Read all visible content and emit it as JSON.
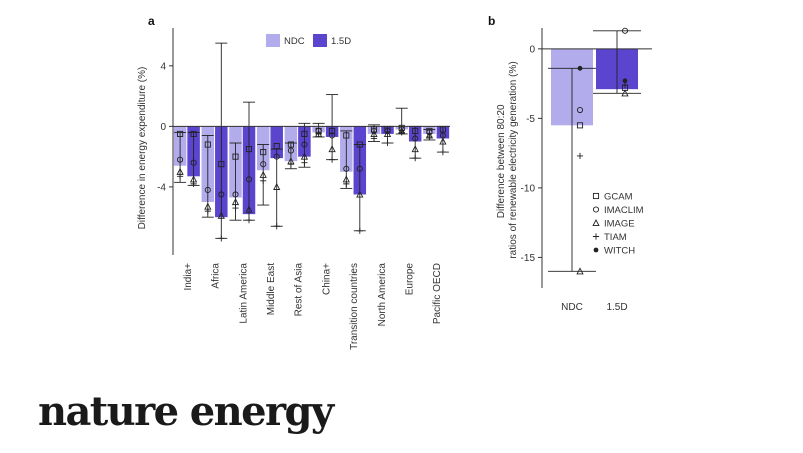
{
  "logo_text": "nature energy",
  "colors": {
    "ndc": "#b3acec",
    "d15": "#5b45cf",
    "axis": "#333333",
    "marker": "#222222"
  },
  "chart_data": [
    {
      "type": "bar",
      "panel_label": "a",
      "ylabel": "Difference in energy expenditure (%)",
      "ylim": [
        -8.5,
        6.5
      ],
      "yticks": [
        4,
        0,
        -4
      ],
      "categories": [
        "India+",
        "Africa",
        "Latin America",
        "Middle East",
        "Rest of Asia",
        "China+",
        "Transition countries",
        "North America",
        "Europe",
        "Pacific OECD"
      ],
      "legend": {
        "position": "top-right",
        "entries": [
          "NDC",
          "1.5D"
        ]
      },
      "series": [
        {
          "name": "NDC",
          "values": [
            -2.6,
            -5.0,
            -4.7,
            -2.9,
            -2.3,
            -0.4,
            -3.0,
            -0.5,
            -0.2,
            -0.5
          ],
          "err_low": [
            -3.7,
            -6.0,
            -6.2,
            -5.2,
            -2.8,
            -0.7,
            -4.1,
            -1.0,
            -0.5,
            -0.9
          ],
          "err_high": [
            -0.4,
            -0.6,
            -1.1,
            -1.2,
            -1.1,
            0.2,
            -0.3,
            0.1,
            1.2,
            -0.2
          ],
          "markers": [
            [
              -0.5,
              -2.2,
              -3.0,
              -3.3
            ],
            [
              -1.2,
              -4.2,
              -5.3,
              -5.6
            ],
            [
              -2.0,
              -4.5,
              -5.0,
              -5.4
            ],
            [
              -1.7,
              -2.5,
              -3.2,
              -3.6
            ],
            [
              -1.2,
              -1.6,
              -2.3,
              -2.5
            ],
            [
              -0.3,
              -0.3,
              -0.5,
              -0.5
            ],
            [
              -0.6,
              -2.8,
              -3.5,
              -3.8
            ],
            [
              -0.2,
              -0.3,
              -0.5,
              -0.8
            ],
            [
              -0.1,
              -0.2,
              -0.3,
              -0.4
            ],
            [
              -0.3,
              -0.4,
              -0.6,
              -0.7
            ]
          ]
        },
        {
          "name": "1.5D",
          "values": [
            -3.3,
            -6.0,
            -5.8,
            -2.1,
            -2.0,
            -0.7,
            -4.5,
            -0.5,
            -1.0,
            -0.8
          ],
          "err_low": [
            -3.9,
            -7.4,
            -6.2,
            -6.6,
            -2.7,
            -2.2,
            -6.9,
            -1.1,
            -2.1,
            -1.7
          ],
          "err_high": [
            -0.4,
            5.5,
            1.6,
            -1.5,
            0.2,
            2.1,
            -1.2,
            0.0,
            0.0,
            0.0
          ],
          "markers": [
            [
              -0.5,
              -2.4,
              -3.5,
              -3.8
            ],
            [
              -2.5,
              -4.5,
              -5.9,
              -7.4
            ],
            [
              -1.5,
              -3.5,
              -5.5,
              -6.2
            ],
            [
              -1.3,
              -2.0,
              -4.0,
              -6.6
            ],
            [
              -0.5,
              -1.2,
              -2.0,
              -2.4
            ],
            [
              -0.3,
              -0.6,
              -1.5,
              -2.2
            ],
            [
              -1.2,
              -2.8,
              -4.5,
              -6.9
            ],
            [
              -0.2,
              -0.3,
              -0.5,
              -1.1
            ],
            [
              -0.3,
              -0.8,
              -1.5,
              -2.1
            ],
            [
              -0.2,
              -0.6,
              -1.0,
              -1.7
            ]
          ]
        }
      ]
    },
    {
      "type": "bar",
      "panel_label": "b",
      "ylabel": "Difference between 80:20 ratios of renewable electricity generation (%)",
      "ylim": [
        -17.2,
        1.5
      ],
      "yticks": [
        0,
        -5,
        -10,
        -15
      ],
      "categories": [
        "NDC",
        "1.5D"
      ],
      "values": [
        -5.5,
        -2.9
      ],
      "err_low": [
        -16.0,
        -3.2
      ],
      "err_high": [
        -1.4,
        1.3
      ],
      "markers": [
        {
          "model": "GCAM",
          "values": [
            -5.5,
            -2.8
          ]
        },
        {
          "model": "IMACLIM",
          "values": [
            -4.4,
            1.3
          ]
        },
        {
          "model": "IMAGE",
          "values": [
            -16.0,
            -3.2
          ]
        },
        {
          "model": "TIAM",
          "values": [
            -7.7,
            -2.6
          ]
        },
        {
          "model": "WITCH",
          "values": [
            -1.4,
            -2.3
          ]
        }
      ],
      "legend": {
        "position": "bottom-right",
        "entries": [
          "GCAM",
          "IMACLIM",
          "IMAGE",
          "TIAM",
          "WITCH"
        ]
      }
    }
  ]
}
